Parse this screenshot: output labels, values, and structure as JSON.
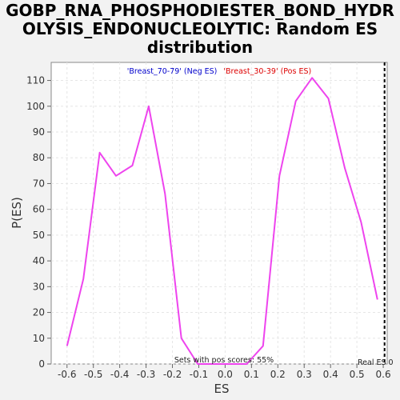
{
  "chart_data": {
    "type": "line",
    "title_lines": [
      "GOBP_RNA_PHOSPHODIESTER_BOND_HYDR",
      "OLYSIS_ENDONUCLEOLYTIC: Random ES",
      "distribution"
    ],
    "xlabel": "ES",
    "ylabel": "P(ES)",
    "xlim": [
      -0.66,
      0.615
    ],
    "ylim": [
      0,
      117
    ],
    "xticks": [
      -0.6,
      -0.5,
      -0.4,
      -0.3,
      -0.2,
      -0.1,
      0.0,
      0.1,
      0.2,
      0.3,
      0.4,
      0.5,
      0.6
    ],
    "xtick_labels": [
      "-0.6",
      "-0.5",
      "-0.4",
      "-0.3",
      "-0.2",
      "-0.1",
      "0.0",
      "0.1",
      "0.2",
      "0.3",
      "0.4",
      "0.5",
      "0.6"
    ],
    "yticks": [
      0,
      10,
      20,
      30,
      40,
      50,
      60,
      70,
      80,
      90,
      100,
      110
    ],
    "ytick_labels": [
      "0",
      "10",
      "20",
      "30",
      "40",
      "50",
      "60",
      "70",
      "80",
      "90",
      "100",
      "110"
    ],
    "grid": true,
    "legend": {
      "neg_label": "'Breast_70-79' (Neg ES)",
      "pos_label": "'Breast_30-39' (Pos ES)",
      "neg_color": "#0000cc",
      "pos_color": "#dd0000",
      "placement": "top"
    },
    "series": [
      {
        "color": "#ee44ee",
        "x": [
          -0.6,
          -0.538,
          -0.476,
          -0.414,
          -0.352,
          -0.29,
          -0.228,
          -0.166,
          -0.104,
          -0.042,
          0.02,
          0.082,
          0.144,
          0.206,
          0.268,
          0.33,
          0.392,
          0.454,
          0.516,
          0.578
        ],
        "y": [
          7,
          33,
          82,
          73,
          77,
          100,
          66,
          10,
          0,
          0,
          0,
          0,
          7,
          73,
          102,
          111,
          103,
          76,
          55,
          25
        ]
      }
    ],
    "real_es_x": 0.605,
    "real_es_label": "Real ES 0",
    "annotation": "Sets with pos scores: 55%"
  }
}
